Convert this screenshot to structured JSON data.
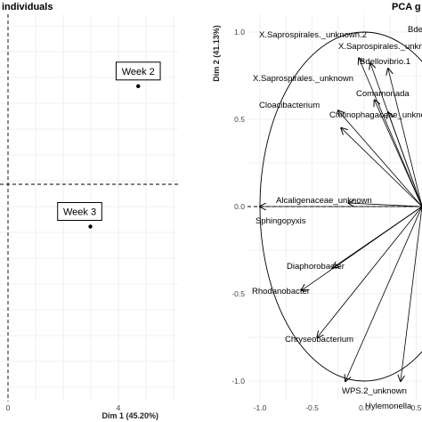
{
  "chart_data": [
    {
      "type": "scatter",
      "title": "individuals",
      "xlabel": "Dim 1 (45.20%)",
      "ylabel": "",
      "xticks": [
        "0",
        "4"
      ],
      "xlim": [
        0,
        6.4
      ],
      "ylim": [
        -2.6,
        1.6
      ],
      "grid": true,
      "points": [
        {
          "label": "Week 2",
          "x": 4.9,
          "y": 0.58
        },
        {
          "label": "Week 3",
          "x": 3.1,
          "y": -0.25
        }
      ]
    },
    {
      "type": "scatter",
      "title": "PCA g",
      "xlabel": "",
      "ylabel": "Dim 2 (41.13%)",
      "xticks": [
        "-1.0",
        "-0.5",
        "0.0",
        "0.5"
      ],
      "yticks": [
        "-1.0",
        "-0.5",
        "0.0",
        "0.5",
        "1.0"
      ],
      "xlim": [
        -1.08,
        0.7
      ],
      "ylim": [
        -1.08,
        1.08
      ],
      "grid": true,
      "circle_radius": 1.0,
      "arrow_origin": [
        0.7,
        0.0
      ],
      "variables": [
        {
          "label": "X.Saprospirales._unknown.2",
          "x": -0.05,
          "y": 0.85
        },
        {
          "label": "X.Saprospirales._unknown",
          "x": 0.06,
          "y": 0.82
        },
        {
          "label": "X.Saprospirales._unknown",
          "x": -0.25,
          "y": 0.55
        },
        {
          "label": "Bdellovibrio.1",
          "x": 0.23,
          "y": 0.79
        },
        {
          "label": "Bde",
          "x": 0.65,
          "y": 1.0
        },
        {
          "label": "Chitinophagaceae_unknown",
          "x": 0.1,
          "y": 0.61
        },
        {
          "label": "Comamonada",
          "x": 0.23,
          "y": 0.54
        },
        {
          "label": "Cloacibacterium",
          "x": -0.22,
          "y": 0.45
        },
        {
          "label": "Alcaligenaceae_unknown",
          "x": -0.15,
          "y": 0.02
        },
        {
          "label": "Sphingopyxis",
          "x": -1.0,
          "y": 0.0
        },
        {
          "label": "Diaphorobacter",
          "x": -0.3,
          "y": -0.35
        },
        {
          "label": "Rhodanobacter",
          "x": -0.6,
          "y": -0.48
        },
        {
          "label": "Chryseobacterium",
          "x": -0.45,
          "y": -0.75
        },
        {
          "label": "WPS.2_unknown",
          "x": -0.18,
          "y": -1.0
        },
        {
          "label": "Hylemonella",
          "x": 0.35,
          "y": -1.0
        }
      ]
    }
  ]
}
